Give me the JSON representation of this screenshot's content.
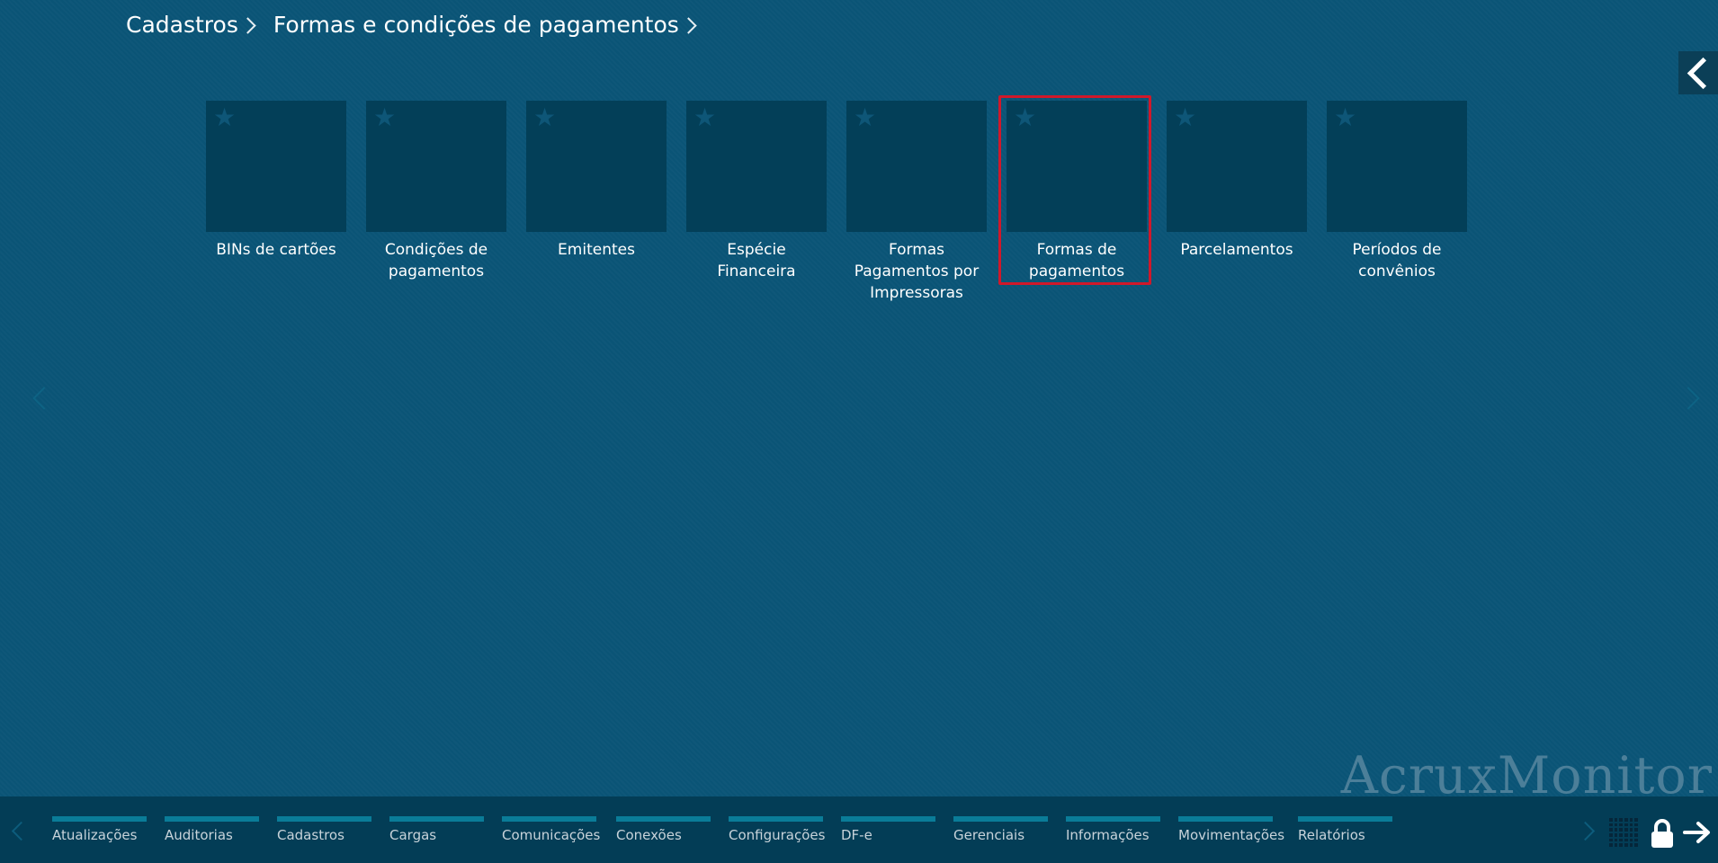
{
  "breadcrumb": {
    "items": [
      "Cadastros",
      "Formas e condições de pagamentos"
    ]
  },
  "tiles": [
    {
      "label": "BINs de cartões"
    },
    {
      "label": "Condições de pagamentos"
    },
    {
      "label": "Emitentes"
    },
    {
      "label": "Espécie Financeira"
    },
    {
      "label": "Formas Pagamentos por Impressoras"
    },
    {
      "label": "Formas de pagamentos",
      "highlighted": true
    },
    {
      "label": "Parcelamentos"
    },
    {
      "label": "Períodos de convênios"
    }
  ],
  "tile_star_glyph": "★",
  "watermark": "AcruxMonitor",
  "bottom_nav": {
    "categories": [
      "Atualizações",
      "Auditorias",
      "Cadastros",
      "Cargas",
      "Comunicações",
      "Conexões",
      "Configurações",
      "DF-e",
      "Gerenciais",
      "Informações",
      "Movimentações",
      "Relatórios"
    ]
  },
  "colors": {
    "background": "#0a5476",
    "tile": "#033f58",
    "bottom_bar": "#033d56",
    "category_bar": "#0a7c98",
    "highlight_border": "#d0182a"
  },
  "icons": [
    "chevron-left-icon",
    "star-icon",
    "grid-icon",
    "lock-icon",
    "arrow-right-icon"
  ]
}
